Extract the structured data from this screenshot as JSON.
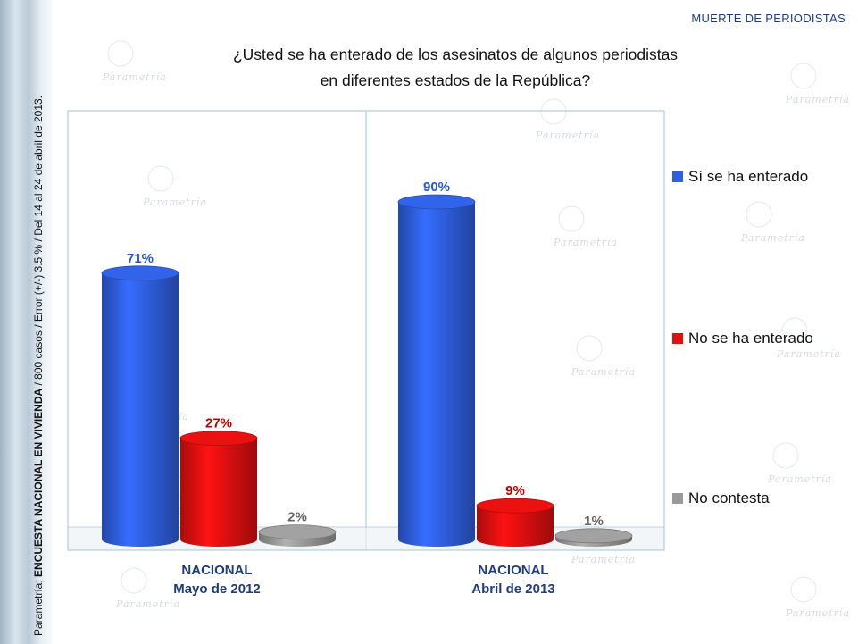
{
  "header": {
    "tag": "MUERTE DE PERIODISTAS",
    "question_line1": "¿Usted se ha enterado de los asesinatos de algunos periodistas",
    "question_line2": "en diferentes estados de la República?"
  },
  "side_note": {
    "prefix": "Parametría; ",
    "bold": "ENCUESTA NACIONAL EN VIVIENDA",
    "suffix": " / 800 casos / Error (+/-) 3.5 % / Del 14 al 24  de abril de 2013."
  },
  "watermark_text": "Parametría",
  "colors": {
    "blue": "#2f5fe0",
    "red": "#e01010",
    "gray": "#9a9a9a",
    "panel_border": "#9fc6d8",
    "label_text": "#1f3d7a"
  },
  "chart_data": {
    "type": "bar",
    "categories": [
      [
        "NACIONAL",
        "Mayo de 2012"
      ],
      [
        "NACIONAL",
        "Abril de 2013"
      ]
    ],
    "series": [
      {
        "name": "Sí se ha enterado",
        "values": [
          71,
          90
        ],
        "labels": [
          "71%",
          "90%"
        ],
        "color": "#2f5fe0",
        "label_color": "#2a55d0"
      },
      {
        "name": "No se ha enterado",
        "values": [
          27,
          9
        ],
        "labels": [
          "27%",
          "9%"
        ],
        "color": "#e01010",
        "label_color": "#c00000"
      },
      {
        "name": "No contesta",
        "values": [
          2,
          1
        ],
        "labels": [
          "2%",
          "1%"
        ],
        "color": "#9a9a9a",
        "label_color": "#666666"
      }
    ],
    "ylim": [
      0,
      100
    ],
    "grid": false,
    "legend_position": "right"
  }
}
